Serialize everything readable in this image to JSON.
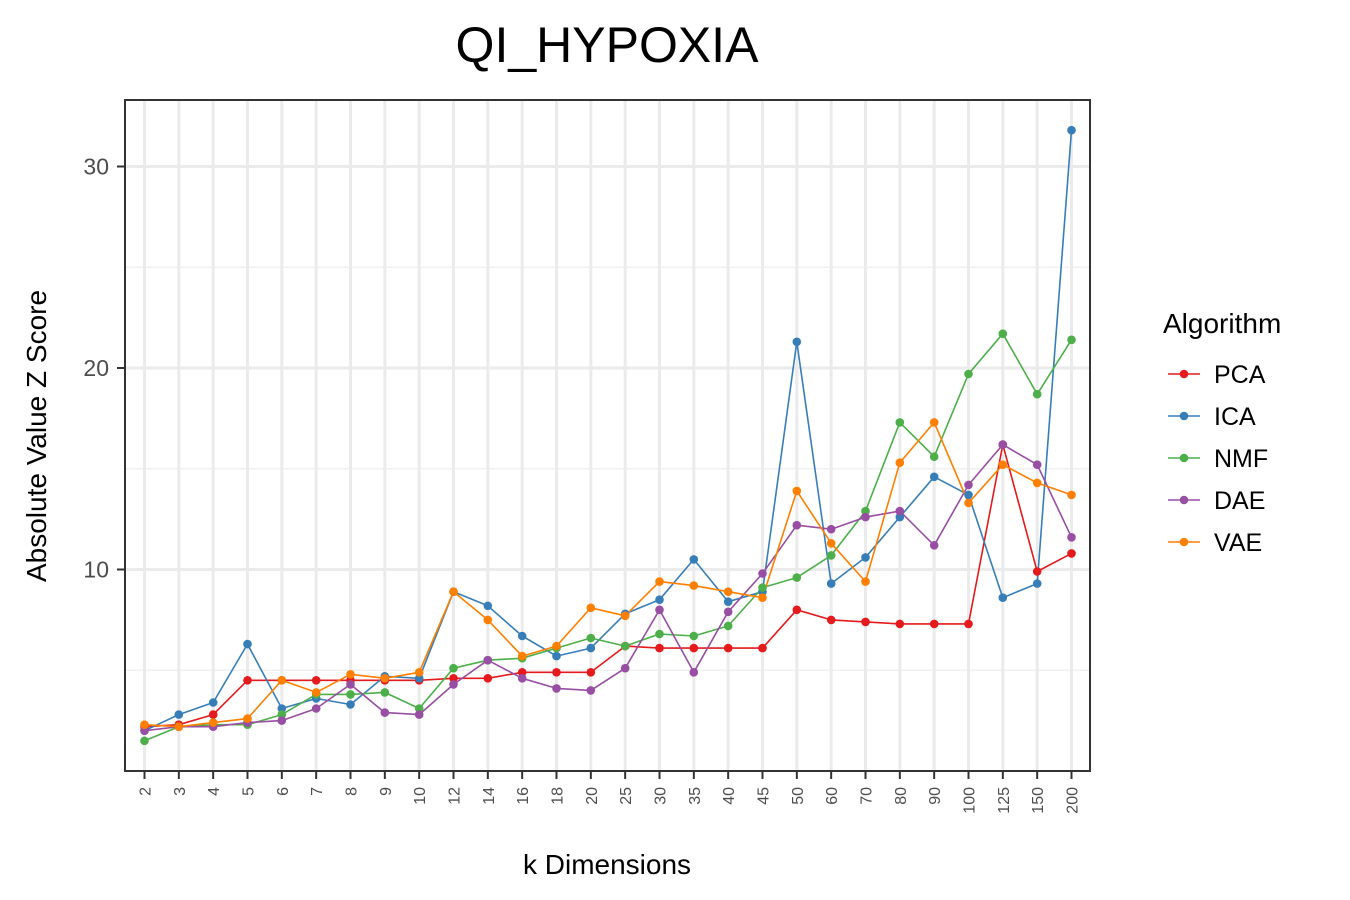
{
  "chart_data": {
    "type": "line",
    "title": "QI_HYPOXIA",
    "xlabel": "k Dimensions",
    "ylabel": "Absolute Value Z Score",
    "categories": [
      "2",
      "3",
      "4",
      "5",
      "6",
      "7",
      "8",
      "9",
      "10",
      "12",
      "14",
      "16",
      "18",
      "20",
      "25",
      "30",
      "35",
      "40",
      "45",
      "50",
      "60",
      "70",
      "80",
      "90",
      "100",
      "125",
      "150",
      "200"
    ],
    "yticks": [
      10,
      20,
      30
    ],
    "ylim": [
      0.0,
      33.3
    ],
    "grid": true,
    "legend_title": "Algorithm",
    "legend_position": "right",
    "series": [
      {
        "name": "PCA",
        "color": "#E41A1C",
        "values": [
          2.2,
          2.3,
          2.8,
          4.5,
          4.5,
          4.5,
          4.5,
          4.5,
          4.5,
          4.6,
          4.6,
          4.9,
          4.9,
          4.9,
          6.2,
          6.1,
          6.1,
          6.1,
          6.1,
          8.0,
          7.5,
          7.4,
          7.3,
          7.3,
          7.3,
          16.2,
          9.9,
          10.8
        ]
      },
      {
        "name": "ICA",
        "color": "#377EB8",
        "values": [
          2.0,
          2.8,
          3.4,
          6.3,
          3.1,
          3.6,
          3.3,
          4.7,
          4.6,
          8.9,
          8.2,
          6.7,
          5.7,
          6.1,
          7.8,
          8.5,
          10.5,
          8.4,
          8.9,
          21.3,
          9.3,
          10.6,
          12.6,
          14.6,
          13.7,
          8.6,
          9.3,
          31.8
        ]
      },
      {
        "name": "NMF",
        "color": "#4DAF4A",
        "values": [
          1.5,
          2.2,
          2.3,
          2.3,
          2.8,
          3.8,
          3.8,
          3.9,
          3.1,
          5.1,
          5.5,
          5.6,
          6.1,
          6.6,
          6.2,
          6.8,
          6.7,
          7.2,
          9.1,
          9.6,
          10.7,
          12.9,
          17.3,
          15.6,
          19.7,
          21.7,
          18.7,
          21.4
        ]
      },
      {
        "name": "DAE",
        "color": "#984EA3",
        "values": [
          2.0,
          2.2,
          2.2,
          2.4,
          2.5,
          3.1,
          4.3,
          2.9,
          2.8,
          4.3,
          5.5,
          4.6,
          4.1,
          4.0,
          5.1,
          8.0,
          4.9,
          7.9,
          9.8,
          12.2,
          12.0,
          12.6,
          12.9,
          11.2,
          14.2,
          16.2,
          15.2,
          11.6
        ]
      },
      {
        "name": "VAE",
        "color": "#FF7F00",
        "values": [
          2.3,
          2.2,
          2.4,
          2.6,
          4.5,
          3.9,
          4.8,
          4.6,
          4.9,
          8.9,
          7.5,
          5.7,
          6.2,
          8.1,
          7.7,
          9.4,
          9.2,
          8.9,
          8.6,
          13.9,
          11.3,
          9.4,
          15.3,
          17.3,
          13.3,
          15.2,
          14.3,
          13.7
        ]
      }
    ]
  }
}
